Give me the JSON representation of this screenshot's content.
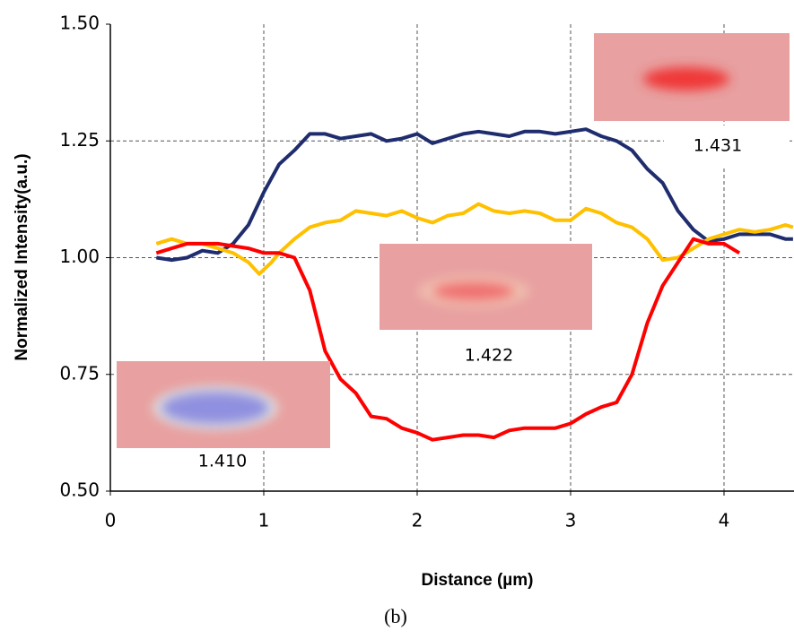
{
  "chart_data": {
    "type": "line",
    "x_label": "Distance (µm)",
    "y_label": "Normalized Intensity(a.u.)",
    "caption": "(b)",
    "xlim": [
      0,
      4.46
    ],
    "ylim": [
      0.5,
      1.5
    ],
    "xticks": [
      0,
      1,
      2,
      3,
      4
    ],
    "yticks": [
      {
        "value": 0.5,
        "label": "0.50"
      },
      {
        "value": 0.75,
        "label": "0.75"
      },
      {
        "value": 1,
        "label": "1.00"
      },
      {
        "value": 1.25,
        "label": "1.25"
      },
      {
        "value": 1.5,
        "label": "1.50"
      }
    ],
    "grid": true,
    "annotations": [
      "1.410",
      "1.422",
      "1.431"
    ],
    "series": [
      {
        "color": "#1f2d6e",
        "x": [
          0.3,
          0.4,
          0.5,
          0.6,
          0.7,
          0.8,
          0.9,
          1.0,
          1.1,
          1.2,
          1.3,
          1.4,
          1.5,
          1.6,
          1.7,
          1.8,
          1.9,
          2.0,
          2.1,
          2.2,
          2.3,
          2.4,
          2.5,
          2.6,
          2.7,
          2.8,
          2.9,
          3.0,
          3.1,
          3.2,
          3.3,
          3.4,
          3.5,
          3.6,
          3.7,
          3.8,
          3.9,
          4.0,
          4.1,
          4.2,
          4.3,
          4.4,
          4.45
        ],
        "values": [
          1.0,
          0.995,
          1.0,
          1.015,
          1.01,
          1.03,
          1.07,
          1.14,
          1.2,
          1.23,
          1.265,
          1.265,
          1.255,
          1.26,
          1.265,
          1.25,
          1.255,
          1.265,
          1.245,
          1.255,
          1.265,
          1.27,
          1.265,
          1.26,
          1.27,
          1.27,
          1.265,
          1.27,
          1.275,
          1.26,
          1.25,
          1.23,
          1.19,
          1.16,
          1.1,
          1.06,
          1.035,
          1.04,
          1.05,
          1.05,
          1.05,
          1.04,
          1.04
        ]
      },
      {
        "color": "#ffc000",
        "x": [
          0.3,
          0.4,
          0.5,
          0.6,
          0.7,
          0.8,
          0.9,
          0.97,
          1.05,
          1.1,
          1.2,
          1.3,
          1.4,
          1.5,
          1.6,
          1.7,
          1.8,
          1.9,
          2.0,
          2.1,
          2.2,
          2.3,
          2.4,
          2.5,
          2.6,
          2.7,
          2.8,
          2.9,
          3.0,
          3.1,
          3.2,
          3.3,
          3.4,
          3.5,
          3.6,
          3.7,
          3.8,
          3.9,
          4.0,
          4.1,
          4.2,
          4.3,
          4.4,
          4.45
        ],
        "values": [
          1.03,
          1.04,
          1.03,
          1.03,
          1.02,
          1.01,
          0.99,
          0.965,
          0.99,
          1.01,
          1.04,
          1.065,
          1.075,
          1.08,
          1.1,
          1.095,
          1.09,
          1.1,
          1.085,
          1.075,
          1.09,
          1.095,
          1.115,
          1.1,
          1.095,
          1.1,
          1.095,
          1.08,
          1.08,
          1.105,
          1.095,
          1.075,
          1.065,
          1.04,
          0.995,
          1.0,
          1.02,
          1.04,
          1.05,
          1.06,
          1.055,
          1.06,
          1.07,
          1.065
        ]
      },
      {
        "color": "#ff0000",
        "x": [
          0.3,
          0.4,
          0.5,
          0.6,
          0.7,
          0.8,
          0.9,
          1.0,
          1.1,
          1.2,
          1.3,
          1.4,
          1.5,
          1.6,
          1.7,
          1.8,
          1.9,
          2.0,
          2.1,
          2.2,
          2.3,
          2.4,
          2.5,
          2.6,
          2.7,
          2.8,
          2.9,
          3.0,
          3.1,
          3.2,
          3.3,
          3.4,
          3.5,
          3.6,
          3.7,
          3.8,
          3.9,
          4.0,
          4.1
        ],
        "values": [
          1.01,
          1.02,
          1.03,
          1.03,
          1.03,
          1.025,
          1.02,
          1.01,
          1.01,
          1.0,
          0.93,
          0.8,
          0.74,
          0.71,
          0.66,
          0.655,
          0.635,
          0.625,
          0.61,
          0.615,
          0.62,
          0.62,
          0.615,
          0.63,
          0.635,
          0.635,
          0.635,
          0.645,
          0.665,
          0.68,
          0.69,
          0.75,
          0.86,
          0.94,
          0.99,
          1.04,
          1.03,
          1.03,
          1.01
        ]
      }
    ]
  }
}
